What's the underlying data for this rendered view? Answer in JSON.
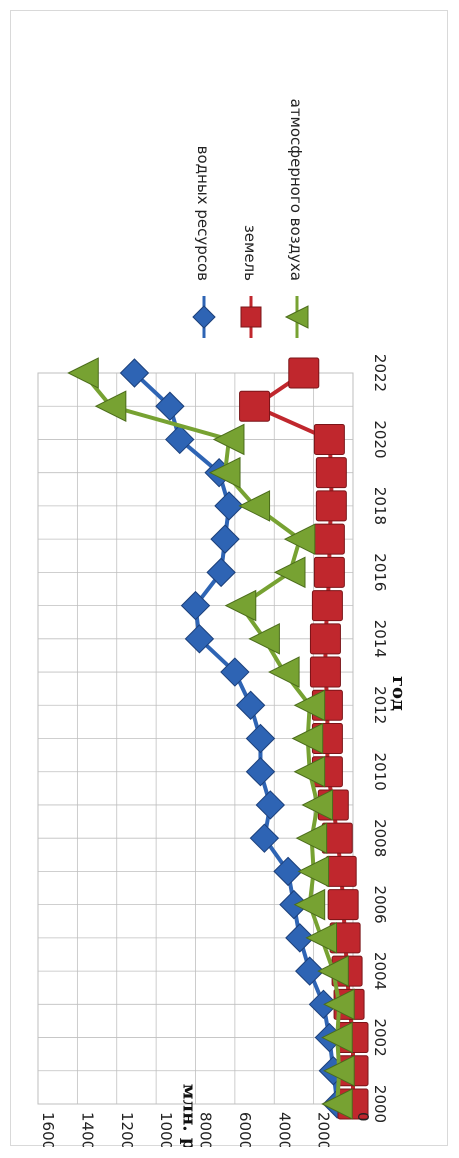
{
  "chart_data": {
    "type": "line",
    "orientation": "rotated-90-clockwise",
    "title": "",
    "xlabel": "год",
    "ylabel": "млн. руб.",
    "x": [
      2000,
      2001,
      2002,
      2003,
      2004,
      2005,
      2006,
      2007,
      2008,
      2009,
      2010,
      2011,
      2012,
      2013,
      2014,
      2015,
      2016,
      2017,
      2018,
      2019,
      2020,
      2021,
      2022
    ],
    "xlim": [
      2000,
      2022
    ],
    "xticks": [
      2000,
      2002,
      2004,
      2006,
      2008,
      2010,
      2012,
      2014,
      2016,
      2018,
      2020,
      2022
    ],
    "ylim": [
      0,
      160000
    ],
    "yticks": [
      0,
      20000,
      40000,
      60000,
      80000,
      100000,
      120000,
      140000,
      160000
    ],
    "grid": true,
    "legend_position": "right",
    "series": [
      {
        "name": "водных ресурсов",
        "color": "#2e64b4",
        "marker": "diamond",
        "values": [
          8000,
          10000,
          12000,
          15000,
          22000,
          27000,
          30000,
          33000,
          45000,
          42000,
          47000,
          47000,
          52000,
          60000,
          78000,
          80000,
          67000,
          65000,
          63000,
          68000,
          88000,
          93000,
          111000
        ]
      },
      {
        "name": "земель",
        "color": "#c0272d",
        "marker": "square",
        "values": [
          0,
          0,
          0,
          2000,
          3000,
          4000,
          5000,
          6000,
          8000,
          10000,
          13000,
          13000,
          13000,
          14000,
          14000,
          13000,
          12000,
          12000,
          11000,
          11000,
          12000,
          50000,
          25000
        ]
      },
      {
        "name": "атмосферного  воздуха",
        "color": "#77a232",
        "marker": "triangle",
        "values": [
          8000,
          7000,
          8000,
          7000,
          10000,
          16000,
          22000,
          20000,
          21000,
          18000,
          22000,
          23000,
          22000,
          35000,
          45000,
          57000,
          32000,
          27000,
          50000,
          65000,
          63000,
          123000,
          137000
        ]
      }
    ]
  }
}
